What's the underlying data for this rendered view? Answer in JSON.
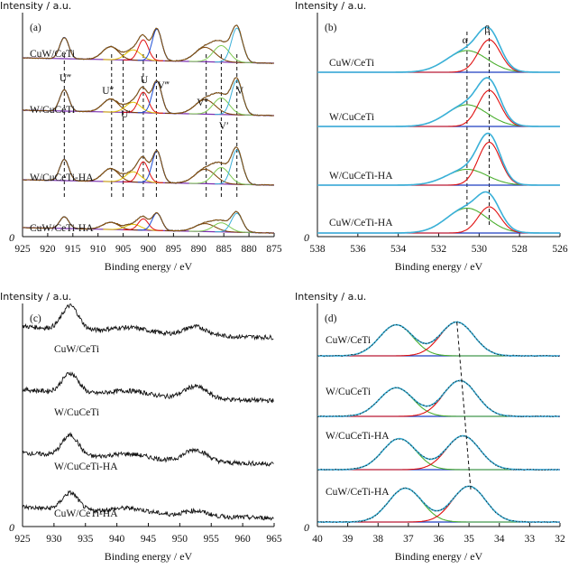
{
  "chart_data": [
    {
      "id": "a",
      "type": "line",
      "panel_label": "(a)",
      "ylabel": "Intensity / a.u.",
      "origin_label": "0",
      "xlabel": "Binding energy / eV",
      "xlim": [
        925,
        875
      ],
      "xticks": [
        "925",
        "920",
        "915",
        "910",
        "905",
        "900",
        "895",
        "890",
        "885",
        "880",
        "875"
      ],
      "samples": [
        "CuW/CeTi",
        "W/CuCeTi",
        "W/CuCeTi-HA",
        "CuW/CeTi-HA"
      ],
      "annotations": [
        {
          "text": "U‴",
          "x": 916.5
        },
        {
          "text": "U″",
          "x": 908.0
        },
        {
          "text": "U′",
          "x": 904.5
        },
        {
          "text": "U",
          "x": 900.8
        },
        {
          "text": "V‴",
          "x": 897.0
        },
        {
          "text": "V″",
          "x": 889.2
        },
        {
          "text": "V′",
          "x": 885.0
        },
        {
          "text": "V",
          "x": 881.8
        }
      ],
      "dashed_guides_eV": [
        916.7,
        907.3,
        905.0,
        901.0,
        898.4,
        888.5,
        885.5,
        882.4
      ],
      "peaks": [
        {
          "center": 916.7,
          "width": 0.9,
          "height": 0.62,
          "color": "#1f4fd6"
        },
        {
          "center": 907.5,
          "width": 1.6,
          "height": 0.38,
          "color": "#7a3f00"
        },
        {
          "center": 903.0,
          "width": 1.5,
          "height": 0.3,
          "color": "#e0c000"
        },
        {
          "center": 901.0,
          "width": 1.0,
          "height": 0.6,
          "color": "#e01010"
        },
        {
          "center": 898.3,
          "width": 0.95,
          "height": 0.92,
          "color": "#1f4fd6"
        },
        {
          "center": 888.7,
          "width": 2.0,
          "height": 0.42,
          "color": "#7a3f00"
        },
        {
          "center": 885.5,
          "width": 1.6,
          "height": 0.48,
          "color": "#7ec850"
        },
        {
          "center": 882.4,
          "width": 1.1,
          "height": 1.0,
          "color": "#3ab0d8"
        }
      ],
      "series_scale": [
        1.0,
        1.0,
        1.0,
        0.55
      ]
    },
    {
      "id": "b",
      "type": "line",
      "panel_label": "(b)",
      "ylabel": "Intensity / a.u.",
      "origin_label": "0",
      "xlabel": "Binding energy / eV",
      "xlim": [
        538,
        526
      ],
      "xticks": [
        "538",
        "536",
        "534",
        "532",
        "530",
        "528",
        "526"
      ],
      "samples": [
        "CuW/CeTi",
        "W/CuCeTi",
        "W/CuCeTi-HA",
        "CuW/CeTi-HA"
      ],
      "annotations": [
        {
          "text": "α",
          "x": 530.6
        },
        {
          "text": "β",
          "x": 529.5
        }
      ],
      "dashed_guides_eV": [
        530.6,
        529.5
      ],
      "components": [
        {
          "name": "α",
          "center": 530.6,
          "width": 1.0,
          "color": "#4caf30"
        },
        {
          "name": "β",
          "center": 529.5,
          "width": 0.55,
          "color": "#e01010"
        }
      ],
      "component_heights": [
        {
          "alpha": 0.48,
          "beta": 0.72
        },
        {
          "alpha": 0.48,
          "beta": 0.8
        },
        {
          "alpha": 0.35,
          "beta": 0.95
        },
        {
          "alpha": 0.55,
          "beta": 0.58
        }
      ]
    },
    {
      "id": "c",
      "type": "line",
      "panel_label": "(c)",
      "ylabel": "Intensity / a.u.",
      "origin_label": "0",
      "xlabel": "Binding energy / eV",
      "xlim": [
        925,
        965
      ],
      "xticks": [
        "925",
        "930",
        "935",
        "940",
        "945",
        "950",
        "955",
        "960",
        "965"
      ],
      "samples": [
        "CuW/CeTi",
        "W/CuCeTi",
        "W/CuCeTi-HA",
        "CuW/CeTi-HA"
      ],
      "features": [
        {
          "center": 932.6,
          "width": 1.3
        },
        {
          "center": 952.5,
          "width": 1.8
        }
      ],
      "feature_heights": [
        {
          "main": 0.55,
          "sat": 0.2
        },
        {
          "main": 0.45,
          "sat": 0.28
        },
        {
          "main": 0.48,
          "sat": 0.28
        },
        {
          "main": 0.4,
          "sat": 0.12
        }
      ]
    },
    {
      "id": "d",
      "type": "line",
      "panel_label": "(d)",
      "ylabel": "Intensity / a.u.",
      "origin_label": "0",
      "xlabel": "Binding energy / eV",
      "xlim": [
        40,
        32
      ],
      "xticks": [
        "40",
        "39",
        "38",
        "37",
        "36",
        "35",
        "34",
        "33",
        "32"
      ],
      "samples": [
        "CuW/CeTi",
        "W/CuCeTi",
        "W/CuCeTi-HA",
        "CuW/CeTi-HA"
      ],
      "doublets": [
        {
          "w4f52": 37.4,
          "w4f72": 35.4,
          "h52": 0.78,
          "h72": 0.85
        },
        {
          "w4f52": 37.4,
          "w4f72": 35.3,
          "h52": 0.72,
          "h72": 0.9
        },
        {
          "w4f52": 37.3,
          "w4f72": 35.2,
          "h52": 0.78,
          "h72": 0.85
        },
        {
          "w4f52": 37.1,
          "w4f72": 35.0,
          "h52": 0.85,
          "h72": 0.9
        }
      ],
      "colors": {
        "fit": "#3ab0d8",
        "w52": "#4caf30",
        "w72": "#e01010",
        "baseline": "#1f3fc0",
        "data": "#111111"
      }
    }
  ]
}
